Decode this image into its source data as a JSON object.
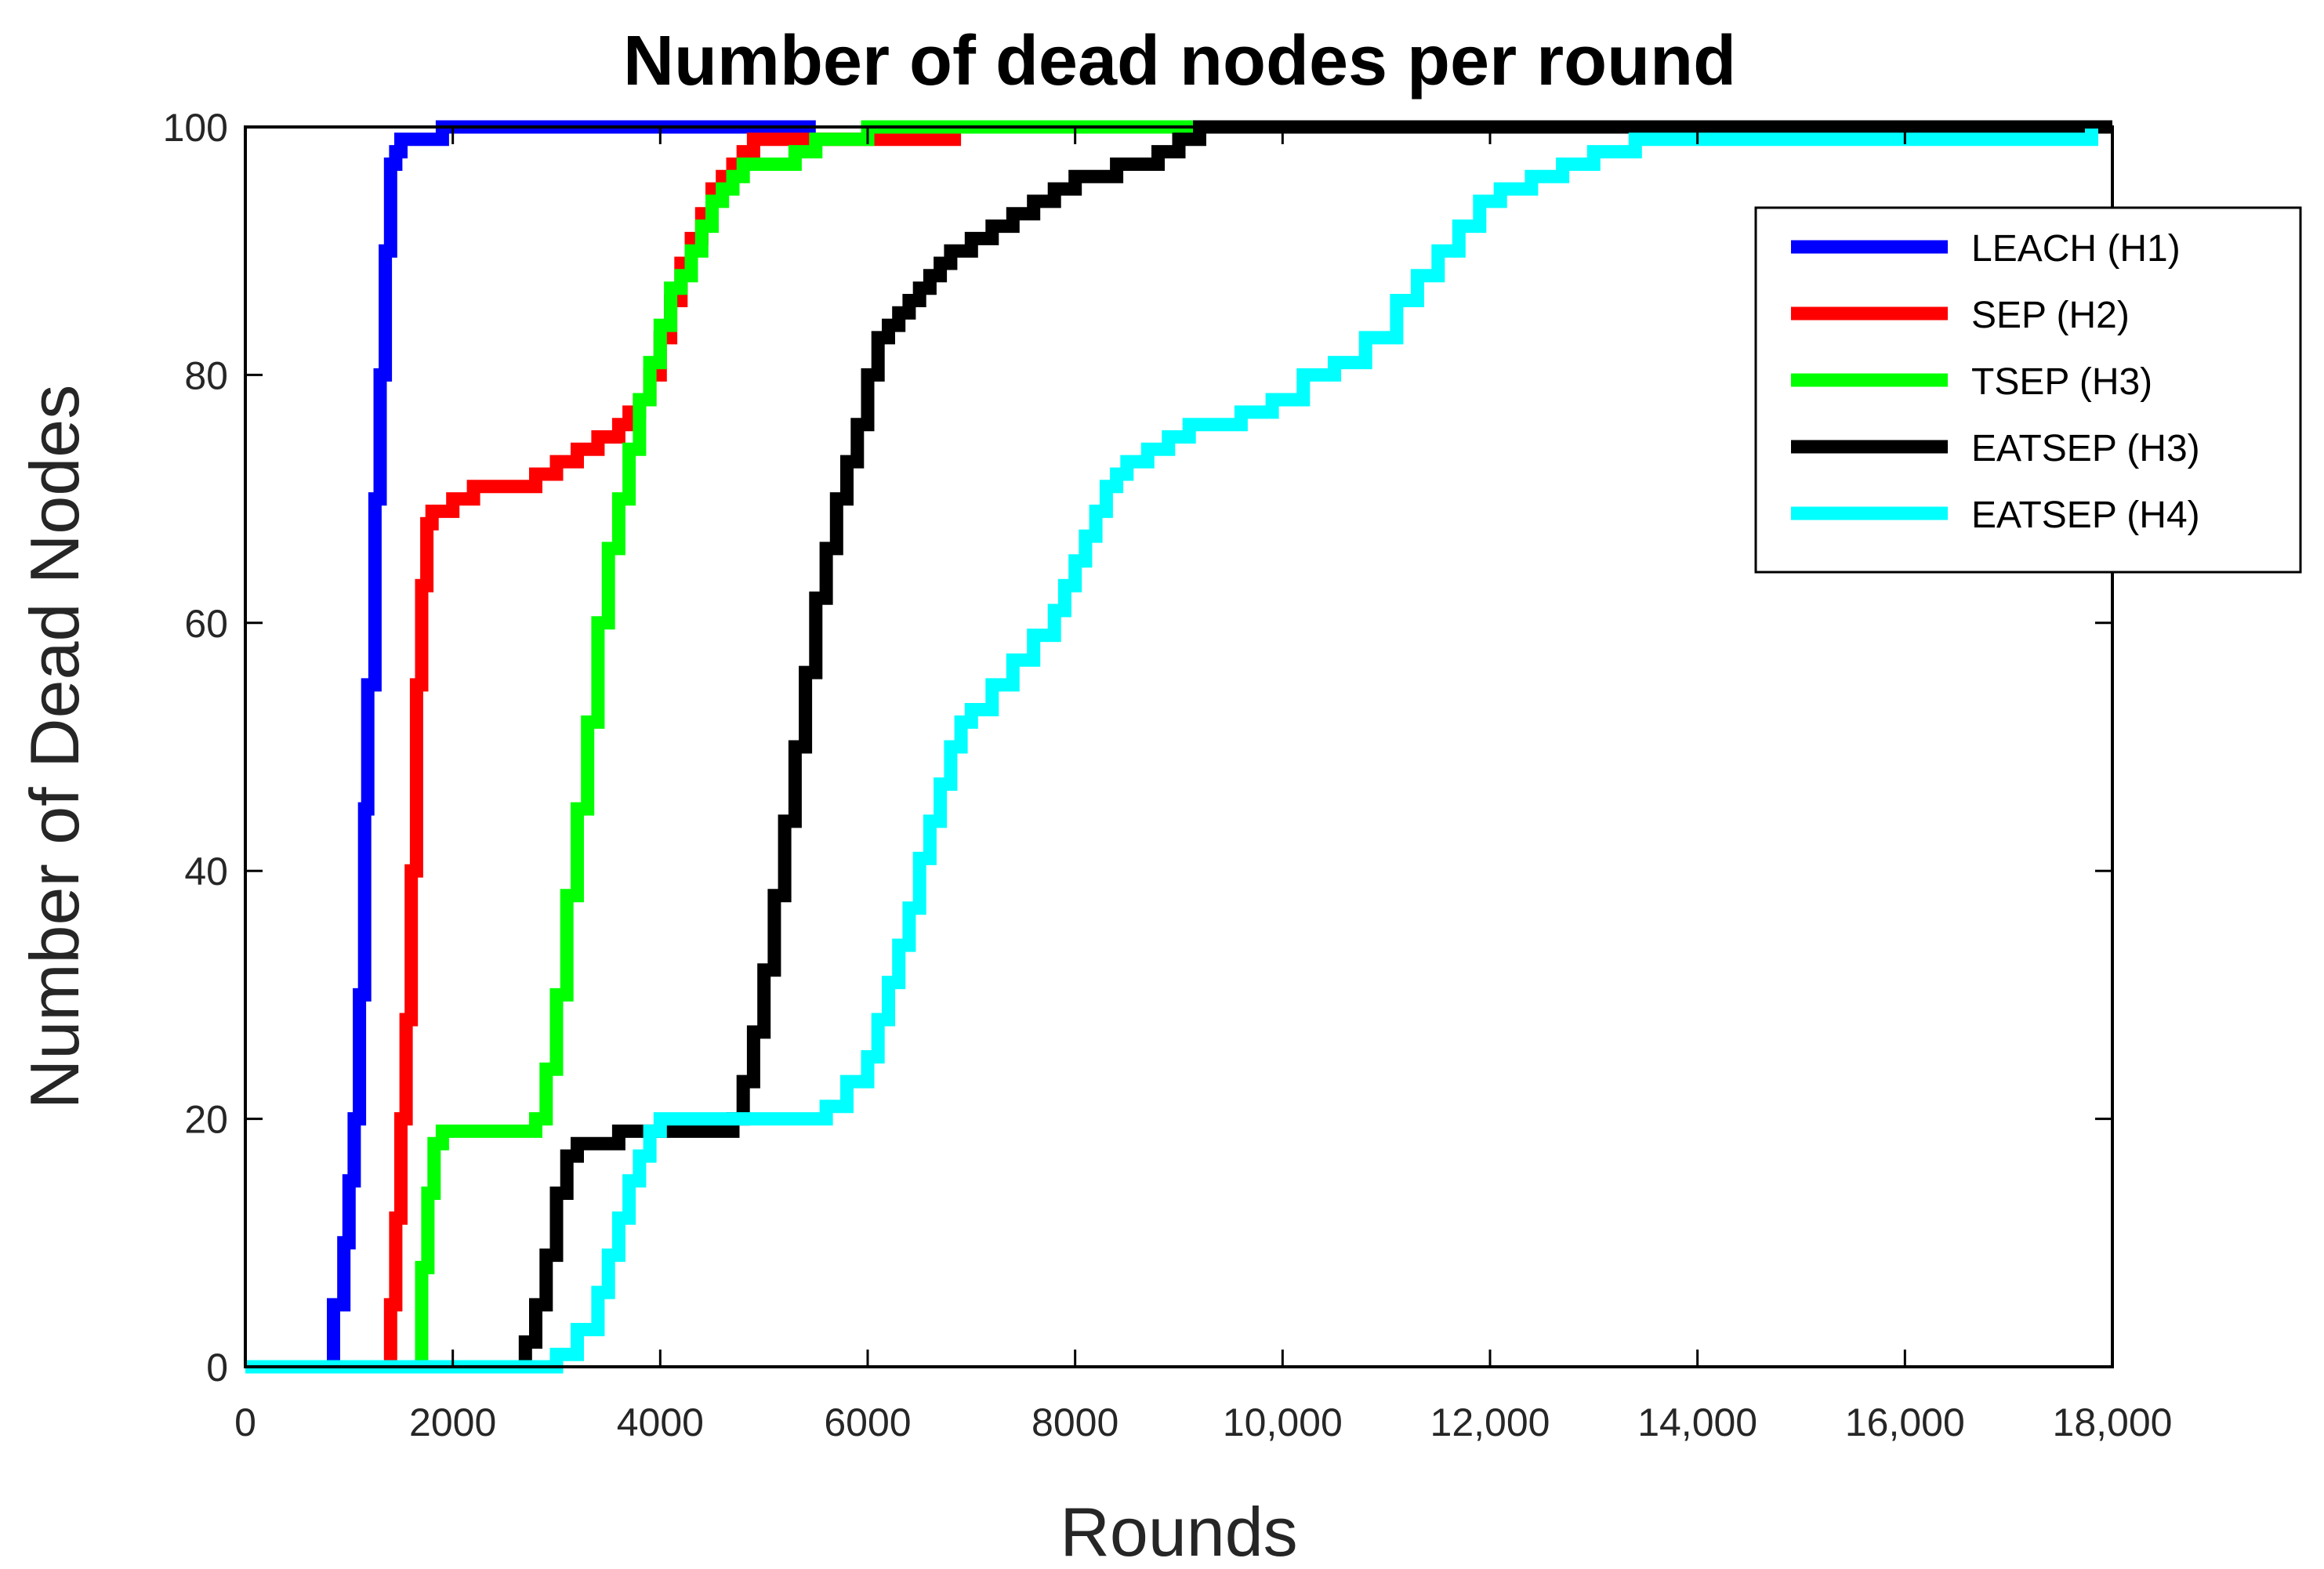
{
  "chart_data": {
    "type": "line",
    "title": "Number of dead nodes per round",
    "xlabel": "Rounds",
    "ylabel": "Number of Dead Nodes",
    "xlim": [
      0,
      18000
    ],
    "ylim": [
      0,
      100
    ],
    "xticks": [
      0,
      2000,
      4000,
      6000,
      8000,
      10000,
      12000,
      14000,
      16000,
      18000
    ],
    "xtick_labels": [
      "0",
      "2000",
      "4000",
      "6000",
      "8000",
      "10,000",
      "12,000",
      "14,000",
      "16,000",
      "18,000"
    ],
    "yticks": [
      0,
      20,
      40,
      60,
      80,
      100
    ],
    "ytick_labels": [
      "0",
      "20",
      "40",
      "60",
      "80",
      "100"
    ],
    "grid": false,
    "legend_position": "top-right",
    "series": [
      {
        "name": "LEACH (H1)",
        "color": "#0000ff",
        "x": [
          0,
          780,
          850,
          950,
          1000,
          1050,
          1100,
          1150,
          1180,
          1250,
          1300,
          1350,
          1400,
          1450,
          1500,
          1550,
          1600,
          1800,
          1900,
          5500
        ],
        "y": [
          0,
          0,
          5,
          10,
          15,
          20,
          30,
          45,
          55,
          70,
          80,
          90,
          97,
          98,
          99,
          99,
          99,
          99,
          100,
          100
        ]
      },
      {
        "name": "SEP (H2)",
        "color": "#ff0000",
        "x": [
          0,
          1350,
          1400,
          1450,
          1500,
          1550,
          1600,
          1650,
          1700,
          1750,
          1800,
          2000,
          2200,
          2400,
          2800,
          3000,
          3200,
          3400,
          3600,
          3700,
          3800,
          3900,
          4000,
          4100,
          4200,
          4300,
          4400,
          4500,
          4600,
          4700,
          4800,
          4900,
          5000,
          5200,
          5500,
          5800,
          6000,
          6200,
          6500,
          6900
        ],
        "y": [
          0,
          0,
          5,
          12,
          20,
          28,
          40,
          55,
          63,
          68,
          69,
          70,
          71,
          71,
          72,
          73,
          74,
          75,
          76,
          77,
          78,
          80,
          83,
          86,
          89,
          91,
          93,
          95,
          96,
          97,
          98,
          99,
          99,
          99,
          99,
          99,
          99,
          99,
          99,
          99
        ]
      },
      {
        "name": "TSEP (H3)",
        "color": "#00ff00",
        "x": [
          0,
          1620,
          1700,
          1760,
          1820,
          1900,
          2000,
          2200,
          2400,
          2700,
          2800,
          2900,
          3000,
          3100,
          3200,
          3300,
          3400,
          3500,
          3600,
          3700,
          3800,
          3900,
          4000,
          4100,
          4200,
          4300,
          4400,
          4500,
          4600,
          4700,
          4800,
          5000,
          5300,
          5500,
          6000,
          7000,
          8000,
          9200
        ],
        "y": [
          0,
          0,
          8,
          14,
          18,
          19,
          19,
          19,
          19,
          19,
          20,
          24,
          30,
          38,
          45,
          52,
          60,
          66,
          70,
          74,
          78,
          81,
          84,
          87,
          88,
          90,
          92,
          94,
          95,
          96,
          97,
          97,
          98,
          99,
          100,
          100,
          100,
          100
        ]
      },
      {
        "name": "EATSEP (H3)",
        "color": "#000000",
        "x": [
          0,
          2600,
          2700,
          2800,
          2900,
          3000,
          3100,
          3200,
          3400,
          3600,
          3800,
          4000,
          4200,
          4400,
          4600,
          4700,
          4800,
          4900,
          5000,
          5100,
          5200,
          5300,
          5400,
          5500,
          5600,
          5700,
          5800,
          5900,
          6000,
          6100,
          6200,
          6300,
          6400,
          6500,
          6600,
          6700,
          6800,
          7000,
          7200,
          7400,
          7600,
          7800,
          8000,
          8200,
          8400,
          8600,
          8800,
          9000,
          9200,
          10000,
          12000,
          14000,
          16000,
          18000
        ],
        "y": [
          0,
          0,
          2,
          5,
          9,
          14,
          17,
          18,
          18,
          19,
          19,
          19,
          19,
          19,
          19,
          20,
          23,
          27,
          32,
          38,
          44,
          50,
          56,
          62,
          66,
          70,
          73,
          76,
          80,
          83,
          84,
          85,
          86,
          87,
          88,
          89,
          90,
          91,
          92,
          93,
          94,
          95,
          96,
          96,
          97,
          97,
          98,
          99,
          100,
          100,
          100,
          100,
          100,
          100
        ]
      },
      {
        "name": "EATSEP (H4)",
        "color": "#00ffff",
        "x": [
          0,
          2900,
          3000,
          3200,
          3400,
          3500,
          3600,
          3700,
          3800,
          3900,
          4000,
          4200,
          4400,
          4600,
          5000,
          5400,
          5600,
          5800,
          6000,
          6100,
          6200,
          6300,
          6400,
          6500,
          6600,
          6700,
          6800,
          6900,
          7000,
          7200,
          7400,
          7600,
          7800,
          7900,
          8000,
          8100,
          8200,
          8300,
          8400,
          8500,
          8700,
          8900,
          9100,
          9300,
          9600,
          9900,
          10200,
          10500,
          10800,
          11100,
          11300,
          11500,
          11700,
          11900,
          12100,
          12400,
          12700,
          13000,
          13400,
          14000,
          15000,
          16000,
          17000,
          17600,
          17800
        ],
        "y": [
          0,
          0,
          1,
          3,
          6,
          9,
          12,
          15,
          17,
          19,
          20,
          20,
          20,
          20,
          20,
          20,
          21,
          23,
          25,
          28,
          31,
          34,
          37,
          41,
          44,
          47,
          50,
          52,
          53,
          55,
          57,
          59,
          61,
          63,
          65,
          67,
          69,
          71,
          72,
          73,
          74,
          75,
          76,
          76,
          77,
          78,
          80,
          81,
          83,
          86,
          88,
          90,
          92,
          94,
          95,
          96,
          97,
          98,
          99,
          99,
          99,
          99,
          99,
          99,
          100
        ]
      }
    ]
  }
}
